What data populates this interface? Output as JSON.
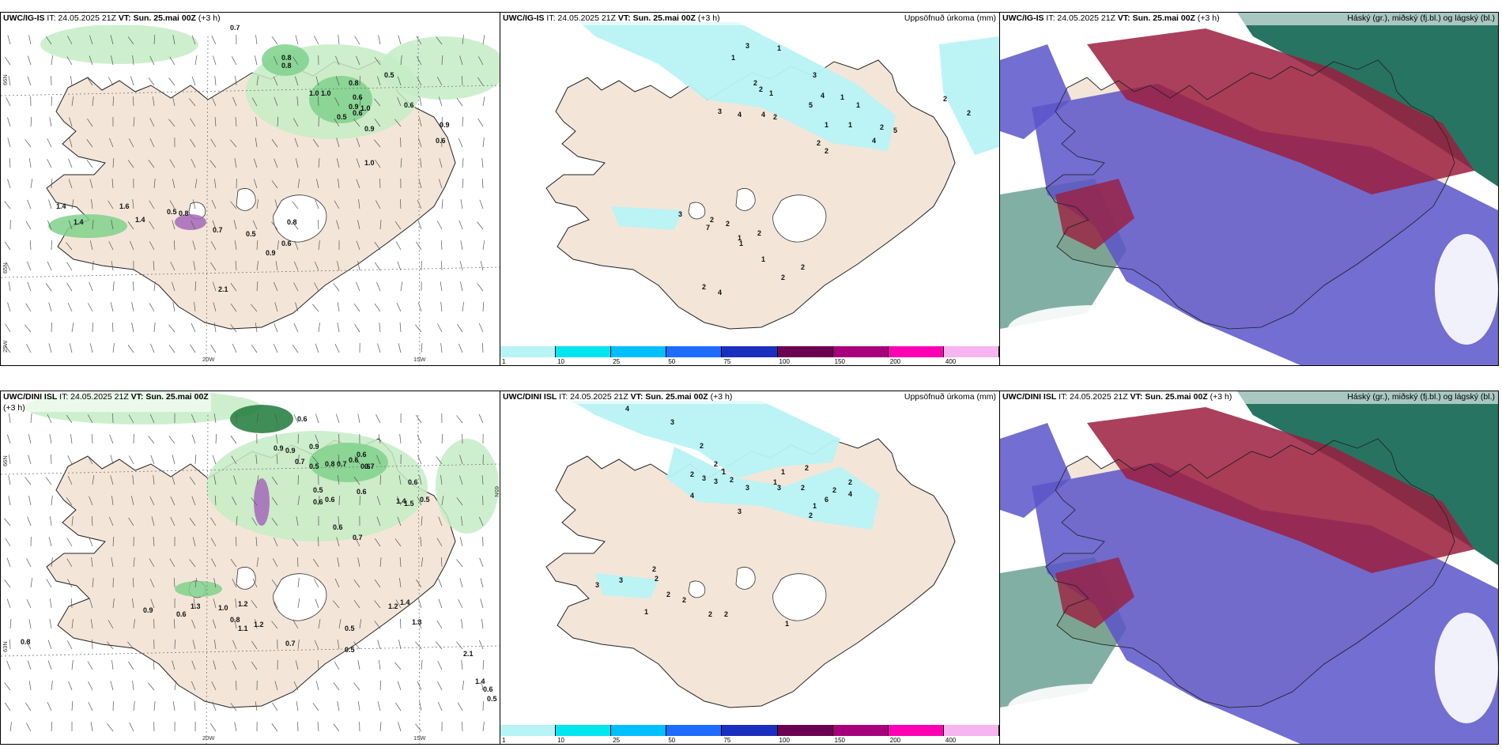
{
  "colors": {
    "land": "#f3e6d8",
    "ice": "#ffffff",
    "sea": "#ffffff",
    "precip_light": "#c6ecc6",
    "precip_mid": "#7fd18c",
    "precip_dark": "#1f7a3a",
    "accum": "#b8f3f6",
    "cloud_high": "#9b1f3f",
    "cloud_mid": "#5b55c9",
    "cloud_low": "#1b6d5a"
  },
  "panels": [
    {
      "model": "UWC/IG-IS",
      "it": "IT: 24.05.2025 21Z",
      "vt_label": "VT:",
      "vt": "Sun. 25.mai 00Z",
      "lead": "(+3 h)",
      "right_title": "",
      "values": [
        "0.7",
        "0.8",
        "0.8",
        "0.5",
        "0.8",
        "1.0",
        "1.0",
        "0.6",
        "0.9",
        "1.0",
        "0.6",
        "0.5",
        "0.6",
        "0.9",
        "0.9",
        "0.6",
        "1.0",
        "1.4",
        "1.4",
        "1.6",
        "1.4",
        "0.5",
        "0.8",
        "0.7",
        "0.5",
        "0.8",
        "0.6",
        "0.9",
        "2.1"
      ],
      "axis": [
        "66N",
        "65N",
        "20W",
        "15W",
        "25W",
        "63N"
      ]
    },
    {
      "model": "UWC/IG-IS",
      "it": "IT: 24.05.2025 21Z",
      "vt_label": "VT:",
      "vt": "Sun. 25.mai 00Z",
      "lead": "(+3 h)",
      "right_title": "Uppsöfnuð úrkoma (mm)",
      "values": [
        "3",
        "1",
        "1",
        "2",
        "2",
        "1",
        "4",
        "4",
        "3",
        "2",
        "3",
        "4",
        "5",
        "1",
        "1",
        "2",
        "2",
        "2",
        "1",
        "1",
        "2",
        "2",
        "5",
        "4",
        "3",
        "7",
        "2",
        "2",
        "1",
        "2",
        "2",
        "1",
        "1",
        "2",
        "4",
        "2"
      ],
      "colorbar": [
        "1",
        "10",
        "25",
        "50",
        "75",
        "100",
        "150",
        "200",
        "400"
      ]
    },
    {
      "model": "UWC/IG-IS",
      "it": "IT: 24.05.2025 21Z",
      "vt_label": "VT:",
      "vt": "Sun. 25.mai 00Z",
      "lead": "(+3 h)",
      "right_title": "Háský (gr.), miðský (fj.bl.) og lágský (bl.)"
    },
    {
      "model": "UWC/DINI ISL",
      "it": "IT: 24.05.2025 21Z",
      "vt_label": "VT:",
      "vt": "Sun. 25.mai 00Z",
      "lead": "(+3 h)",
      "right_title": "",
      "values": [
        "0.6",
        "0.9",
        "0.9",
        "0.9",
        "0.7",
        "0.5",
        "0.8",
        "0.7",
        "0.6",
        "0.6",
        "0.6",
        "0.7",
        "0.5",
        "0.6",
        "0.6",
        "0.6",
        "0.6",
        "1.4",
        "1.5",
        "0.5",
        "0.6",
        "0.7",
        "0.9",
        "0.6",
        "1.3",
        "1.0",
        "1.2",
        "0.8",
        "1.1",
        "1.2",
        "0.7",
        "0.5",
        "0.5",
        "1.2",
        "1.4",
        "1.3",
        "0.8",
        "2.1",
        "1.4",
        "0.6",
        "0.5"
      ],
      "axis": [
        "66N",
        "65N",
        "20W",
        "15W",
        "63N"
      ]
    },
    {
      "model": "UWC/DINI ISL",
      "it": "IT: 24.05.2025 21Z",
      "vt_label": "VT:",
      "vt": "Sun. 25.mai 00Z",
      "lead": "(+3 h)",
      "right_title": "Uppsöfnuð úrkoma (mm)",
      "values": [
        "4",
        "3",
        "2",
        "2",
        "1",
        "2",
        "2",
        "4",
        "3",
        "3",
        "3",
        "1",
        "1",
        "2",
        "2",
        "3",
        "3",
        "6",
        "2",
        "4",
        "2",
        "1",
        "2",
        "3",
        "3",
        "2",
        "2",
        "2",
        "1",
        "2",
        "2",
        "2",
        "1"
      ],
      "colorbar": [
        "1",
        "10",
        "25",
        "50",
        "75",
        "100",
        "150",
        "200",
        "400"
      ]
    },
    {
      "model": "UWC/DINI ISL",
      "it": "IT: 24.05.2025 21Z",
      "vt_label": "VT:",
      "vt": "Sun. 25.mai 00Z",
      "lead": "(+3 h)",
      "right_title": "Háský (gr.), miðský (fj.bl.) og lágský (bl.)"
    }
  ],
  "colorbar_colors": [
    "#b8f3f6",
    "#00e5ee",
    "#00bfff",
    "#1e6bff",
    "#1a2fbf",
    "#6b0050",
    "#a8007d",
    "#ff00b4",
    "#f6b4f0"
  ]
}
